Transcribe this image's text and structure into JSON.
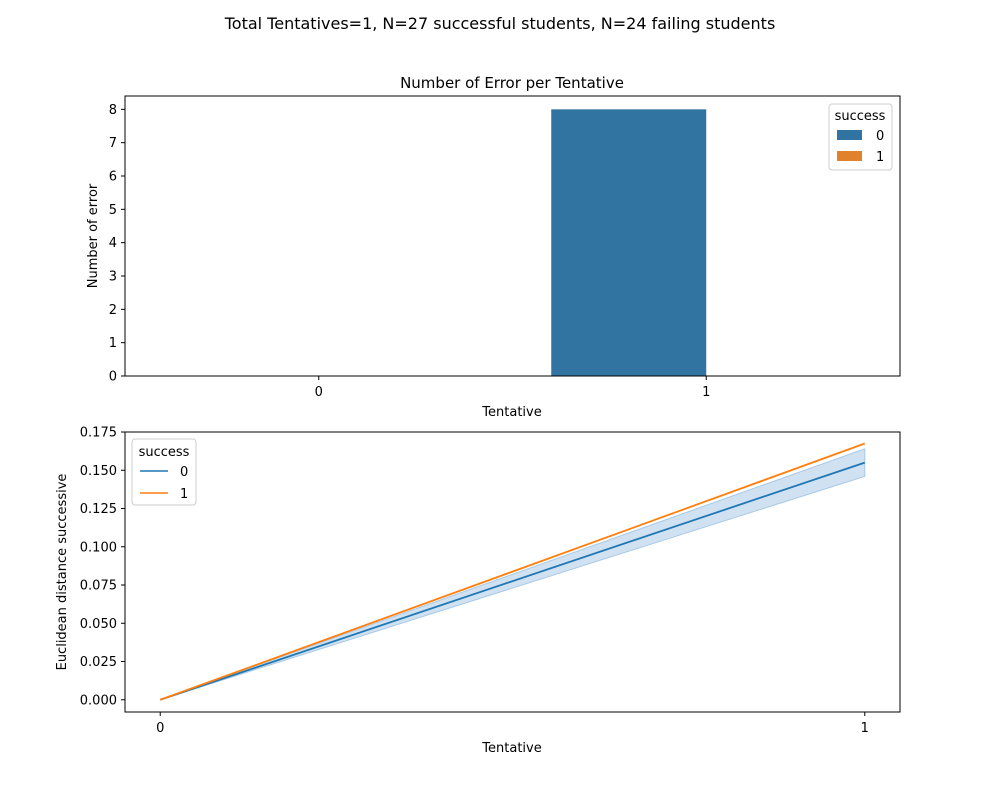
{
  "figure": {
    "suptitle": "Total Tentatives=1, N=27 successful students, N=24 failing students"
  },
  "chart_data": [
    {
      "type": "bar",
      "title": "Number of Error per Tentative",
      "xlabel": "Tentative",
      "ylabel": "Number of error",
      "categories": [
        "0",
        "1"
      ],
      "series": [
        {
          "name": "0",
          "values": [
            0,
            8
          ],
          "color": "#3274a1"
        },
        {
          "name": "1",
          "values": [
            0,
            0
          ],
          "color": "#e1812c"
        }
      ],
      "ylim": [
        0,
        8.4
      ],
      "yticks": [
        "0",
        "1",
        "2",
        "3",
        "4",
        "5",
        "6",
        "7",
        "8"
      ],
      "legend": {
        "title": "success",
        "placement": "top-right"
      },
      "grid": false
    },
    {
      "type": "line",
      "title": "",
      "xlabel": "Tentative",
      "ylabel": "Euclidean distance successive",
      "x": [
        0,
        1
      ],
      "xticks": [
        "0",
        "1"
      ],
      "series": [
        {
          "name": "0",
          "values": [
            0.0,
            0.155
          ],
          "ci_low": [
            0.0,
            0.146
          ],
          "ci_high": [
            0.0,
            0.164
          ],
          "color": "#1f77b4",
          "band_color": "#a9c9e6"
        },
        {
          "name": "1",
          "values": [
            0.0,
            0.1675
          ],
          "color": "#ff7f0e"
        }
      ],
      "ylim": [
        -0.008,
        0.175
      ],
      "yticks": [
        "0.000",
        "0.025",
        "0.050",
        "0.075",
        "0.100",
        "0.125",
        "0.150",
        "0.175"
      ],
      "legend": {
        "title": "success",
        "placement": "top-left"
      },
      "grid": false
    }
  ]
}
